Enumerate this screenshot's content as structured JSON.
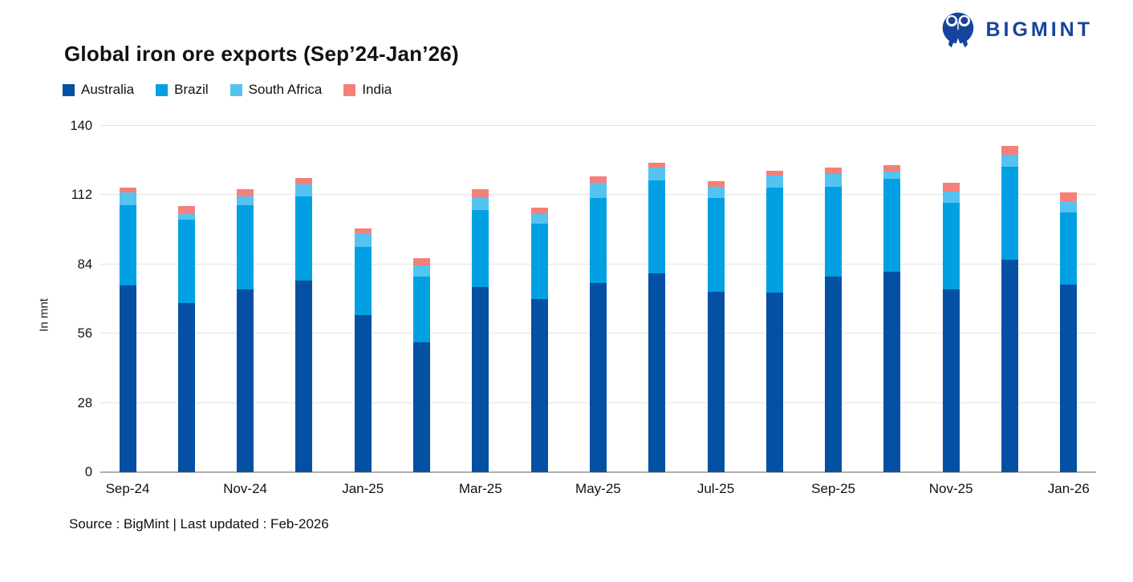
{
  "header": {
    "logo_text": "BIGMINT"
  },
  "colors": {
    "logo_blue": "#16449C",
    "gridline": "#E4E4E4",
    "axis_line": "#AEAEAE",
    "text": "#111111"
  },
  "chart_data": {
    "type": "bar",
    "stacked": true,
    "title": "Global iron ore exports (Sep’24-Jan’26)",
    "ylabel": "In mnt",
    "ylim": [
      0,
      140
    ],
    "yticks": [
      0,
      28,
      56,
      84,
      112,
      140
    ],
    "grid": true,
    "legend_position": "top-left",
    "categories": [
      "Sep-24",
      "Oct-24",
      "Nov-24",
      "Dec-24",
      "Jan-25",
      "Feb-25",
      "Mar-25",
      "Apr-25",
      "May-25",
      "Jun-25",
      "Jul-25",
      "Aug-25",
      "Sep-25",
      "Oct-25",
      "Nov-25",
      "Dec-25",
      "Jan-26"
    ],
    "x_tick_labels_shown": [
      "Sep-24",
      "Nov-24",
      "Jan-25",
      "Mar-25",
      "May-25",
      "Jul-25",
      "Sep-25",
      "Nov-25",
      "Jan-26"
    ],
    "series": [
      {
        "name": "Australia",
        "color": "#0450A2",
        "values": [
          75.5,
          68.5,
          74.0,
          77.5,
          63.5,
          52.5,
          75.0,
          70.0,
          76.5,
          80.5,
          73.0,
          72.5,
          79.0,
          81.0,
          74.0,
          86.0,
          76.0
        ]
      },
      {
        "name": "Brazil",
        "color": "#00A0E3",
        "values": [
          32.5,
          33.5,
          34.0,
          34.0,
          27.5,
          26.5,
          31.0,
          30.5,
          34.5,
          37.5,
          38.0,
          42.5,
          36.5,
          37.5,
          35.0,
          37.5,
          29.0
        ]
      },
      {
        "name": "South Africa",
        "color": "#55C3F0",
        "values": [
          5.0,
          2.5,
          3.5,
          5.0,
          5.5,
          4.5,
          5.0,
          4.0,
          6.0,
          5.0,
          4.5,
          5.0,
          5.0,
          3.0,
          4.5,
          5.0,
          4.5
        ]
      },
      {
        "name": "India",
        "color": "#F4807A",
        "values": [
          2.0,
          3.0,
          3.0,
          2.5,
          2.0,
          3.0,
          3.5,
          2.5,
          2.5,
          2.0,
          2.0,
          2.0,
          2.5,
          2.5,
          3.5,
          3.5,
          3.5
        ]
      }
    ]
  },
  "footer": {
    "source_text": "Source : BigMint | Last updated : Feb-2026"
  }
}
